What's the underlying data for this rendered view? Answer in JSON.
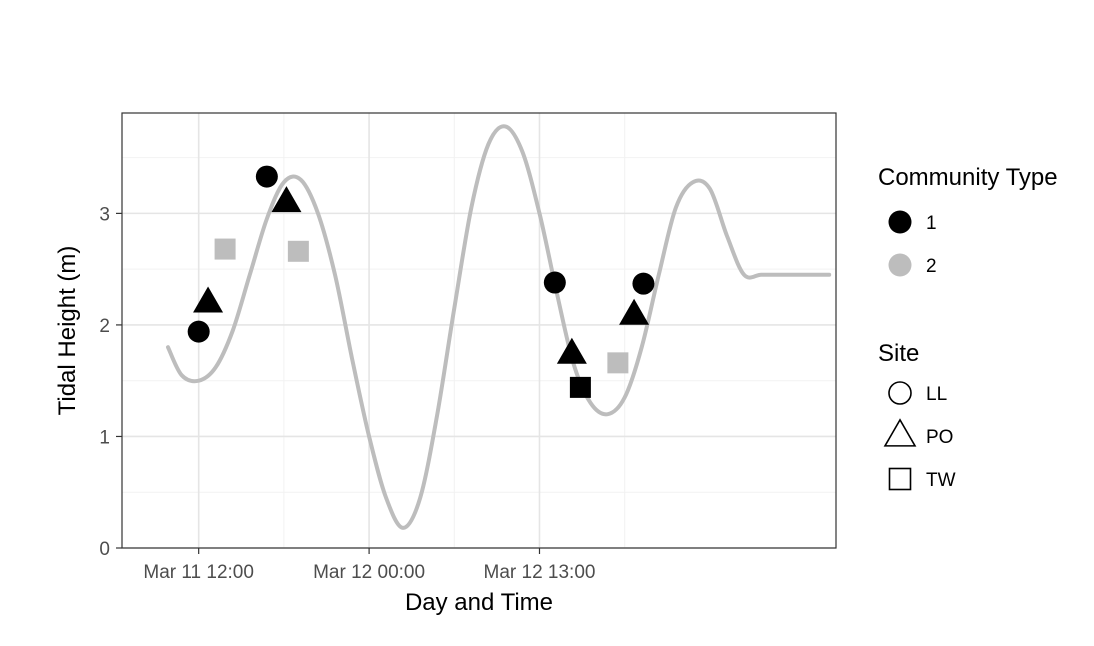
{
  "chart_data": {
    "type": "scatter",
    "xlabel": "Day and Time",
    "ylabel": "Tidal Height (m)",
    "x_tick_labels": [
      "Mar 11 12:00",
      "Mar 12 00:00",
      "Mar 12 13:00"
    ],
    "y_ticks": [
      0,
      1,
      2,
      3
    ],
    "ylim": [
      0,
      3.9
    ],
    "grid": true,
    "legend_position": "right",
    "tide_curve": {
      "color": "#bdbdbd",
      "x": [
        -1.8,
        -1.0,
        0.0,
        1.0,
        2.0,
        3.0,
        4.0,
        5.0,
        6.0,
        7.0,
        8.0,
        9.0,
        10.0,
        11.0,
        12.0,
        13.0,
        14.0,
        15.0,
        16.0,
        17.0,
        18.0,
        19.0,
        20.0,
        21.0,
        22.0,
        23.0,
        24.0,
        25.0,
        26.0,
        27.0,
        28.0,
        29.0,
        30.0,
        31.0,
        32.0,
        33.0,
        34.0,
        35.0,
        36.0,
        37.0,
        37.3
      ],
      "y": [
        1.8,
        1.55,
        1.5,
        1.62,
        1.95,
        2.45,
        2.95,
        3.28,
        3.3,
        3.0,
        2.45,
        1.7,
        1.0,
        0.45,
        0.18,
        0.45,
        1.2,
        2.15,
        3.05,
        3.62,
        3.78,
        3.55,
        3.0,
        2.3,
        1.65,
        1.3,
        1.2,
        1.35,
        1.8,
        2.45,
        3.05,
        3.28,
        3.22,
        2.8,
        2.45,
        2.45,
        2.45,
        2.45,
        2.45,
        2.45,
        2.45
      ]
    },
    "series": [
      {
        "community_type": "1",
        "site": "LL",
        "x": [
          0.0,
          4.0,
          20.9,
          26.1
        ],
        "y": [
          1.94,
          3.33,
          2.38,
          2.37
        ]
      },
      {
        "community_type": "1",
        "site": "PO",
        "x": [
          0.55,
          5.15,
          21.9,
          25.55
        ],
        "y": [
          2.2,
          3.1,
          1.74,
          2.09
        ]
      },
      {
        "community_type": "1",
        "site": "TW",
        "x": [
          22.4
        ],
        "y": [
          1.44
        ]
      },
      {
        "community_type": "2",
        "site": "TW",
        "x": [
          1.55,
          5.85,
          24.6
        ],
        "y": [
          2.68,
          2.66,
          1.66
        ]
      }
    ],
    "legend": {
      "community_type": {
        "title": "Community Type",
        "items": [
          {
            "label": "1",
            "color": "#000000"
          },
          {
            "label": "2",
            "color": "#bdbdbd"
          }
        ]
      },
      "site": {
        "title": "Site",
        "items": [
          {
            "label": "LL",
            "shape": "circle"
          },
          {
            "label": "PO",
            "shape": "triangle"
          },
          {
            "label": "TW",
            "shape": "square"
          }
        ]
      }
    }
  }
}
